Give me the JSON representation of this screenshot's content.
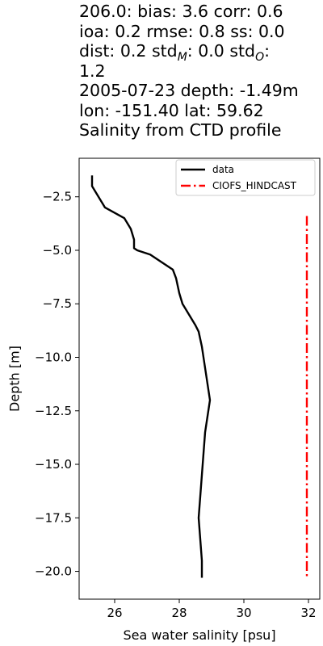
{
  "chart_data": {
    "type": "line",
    "title": "206.0: bias: 3.6  corr: 0.6\nioa: 0.2  rmse: 0.8  ss: 0.0\ndist: 0.2  std_M: 0.0  std_O:\n1.2\n2005-07-23 depth: -1.49m\nlon: -151.40 lat: 59.62\nSalinity from CTD profile",
    "title_lines": [
      "206.0: bias: 3.6  corr: 0.6",
      "ioa: 0.2  rmse: 0.8  ss: 0.0",
      "dist: 0.2  std_M: 0.0  std_O:",
      "1.2",
      "2005-07-23 depth: -1.49m",
      "lon: -151.40 lat: 59.62",
      "Salinity from CTD profile"
    ],
    "xlabel": "Sea water salinity [psu]",
    "ylabel": "Depth [m]",
    "xlim": [
      24.9,
      32.35
    ],
    "ylim": [
      -21.3,
      -0.7
    ],
    "xticks": [
      26,
      28,
      30,
      32
    ],
    "yticks": [
      -2.5,
      -5.0,
      -7.5,
      -10.0,
      -12.5,
      -15.0,
      -17.5,
      -20.0
    ],
    "xtick_labels": [
      "26",
      "28",
      "30",
      "32"
    ],
    "ytick_labels": [
      "−2.5",
      "−5.0",
      "−7.5",
      "−10.0",
      "−12.5",
      "−15.0",
      "−17.5",
      "−20.0"
    ],
    "grid": false,
    "legend_position": "top-right",
    "series": [
      {
        "name": "data",
        "color": "#000000",
        "style": "solid",
        "x": [
          25.3,
          25.3,
          25.5,
          25.7,
          26.3,
          26.5,
          26.6,
          26.6,
          26.7,
          27.1,
          27.4,
          27.8,
          27.9,
          28.0,
          28.1,
          28.3,
          28.5,
          28.6,
          28.7,
          28.75,
          28.8,
          28.85,
          28.9,
          28.95,
          28.9,
          28.85,
          28.8,
          28.75,
          28.7,
          28.65,
          28.6,
          28.65,
          28.7,
          28.7
        ],
        "y": [
          -1.5,
          -2.0,
          -2.5,
          -3.0,
          -3.5,
          -4.0,
          -4.5,
          -4.9,
          -5.0,
          -5.2,
          -5.5,
          -5.9,
          -6.3,
          -7.0,
          -7.5,
          -8.0,
          -8.5,
          -8.8,
          -9.5,
          -10.0,
          -10.5,
          -11.0,
          -11.5,
          -12.0,
          -12.5,
          -13.0,
          -13.5,
          -14.5,
          -15.5,
          -16.5,
          -17.5,
          -18.5,
          -19.5,
          -20.3
        ]
      },
      {
        "name": "CIOFS_HINDCAST",
        "color": "#ff0000",
        "style": "dashdot",
        "x": [
          31.95,
          31.95
        ],
        "y": [
          -3.4,
          -20.3
        ]
      }
    ]
  }
}
